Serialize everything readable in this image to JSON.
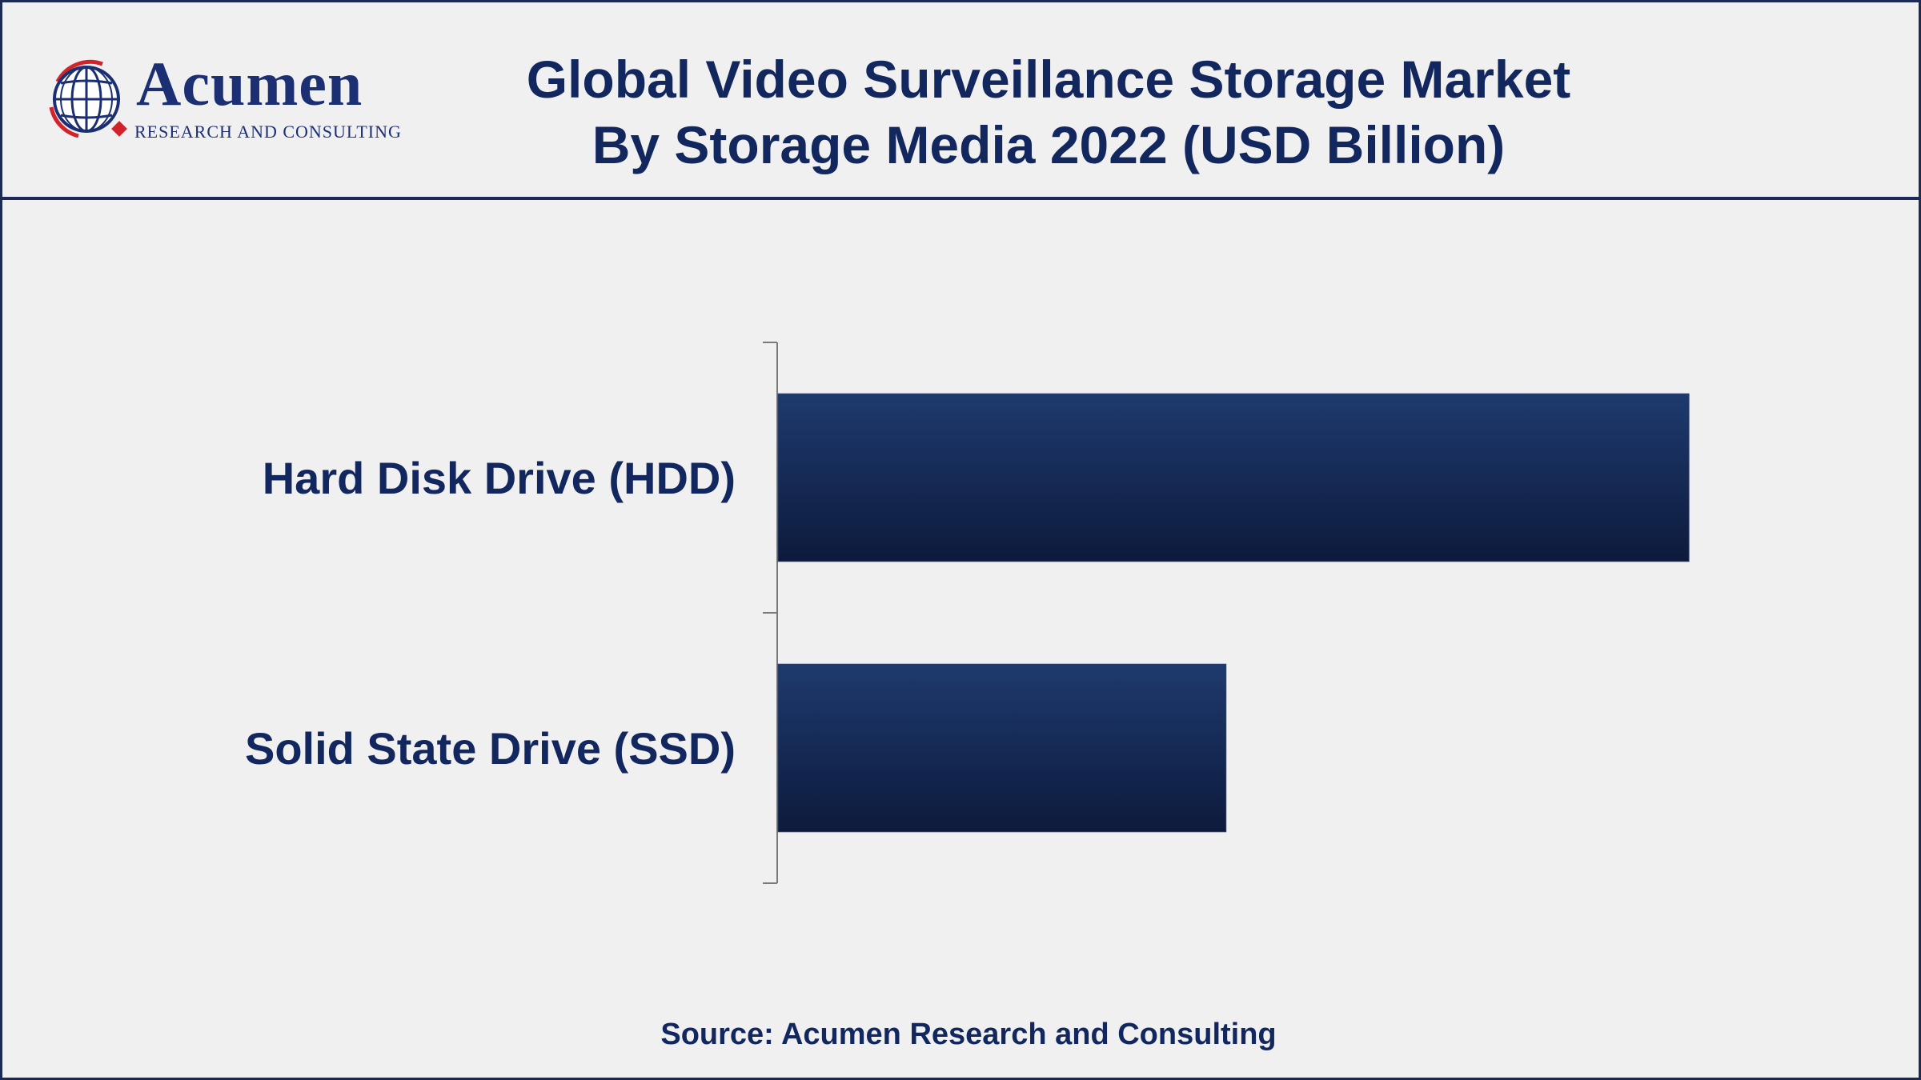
{
  "header": {
    "logo_name": "Acumen",
    "logo_subtitle": "RESEARCH AND CONSULTING",
    "title_line1": "Global Video Surveillance Storage Market",
    "title_line2": "By Storage Media 2022 (USD Billion)"
  },
  "chart_data": {
    "type": "bar",
    "orientation": "horizontal",
    "title": "Global Video Surveillance Storage Market By Storage Media 2022 (USD Billion)",
    "categories": [
      "Hard Disk Drive (HDD)",
      "Solid State Drive (SSD)"
    ],
    "values": [
      6.1,
      3.0
    ],
    "xlim": [
      0,
      7.0
    ],
    "xlabel": "",
    "ylabel": "",
    "grid": false,
    "legend": "none",
    "bar_color_top": "#1e3a6e",
    "bar_color_bottom": "#0d1a3c"
  },
  "footer": {
    "source": "Source: Acumen Research and Consulting"
  },
  "colors": {
    "navy": "#13275f",
    "logo_red": "#d2232a",
    "border": "#1b2b55"
  }
}
